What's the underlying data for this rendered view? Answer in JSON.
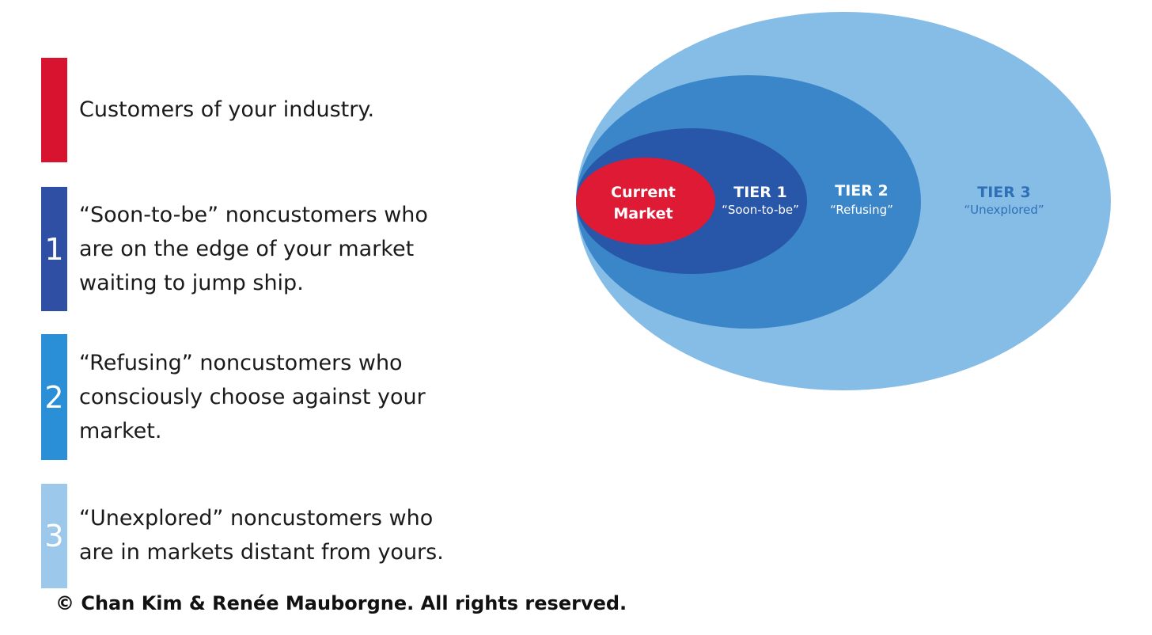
{
  "legend": {
    "items": [
      {
        "id": "current",
        "number": "",
        "text": "Customers of your industry.",
        "color": "#d7132f"
      },
      {
        "id": "tier1",
        "number": "1",
        "text": "“Soon-to-be” noncustomers who\nare on the edge of your market\nwaiting to jump ship.",
        "color": "#2e4fa3"
      },
      {
        "id": "tier2",
        "number": "2",
        "text": "“Refusing” noncustomers who\nconsciously choose against your\nmarket.",
        "color": "#2a8fd6"
      },
      {
        "id": "tier3",
        "number": "3",
        "text": "“Unexplored” noncustomers who\nare in markets distant from yours.",
        "color": "#9cc8ec"
      }
    ]
  },
  "diagram": {
    "current": {
      "line1": "Current",
      "line2": "Market",
      "color": "#de1a35"
    },
    "tier1": {
      "title": "TIER 1",
      "subtitle": "“Soon-to-be”",
      "color": "#2856a8"
    },
    "tier2": {
      "title": "TIER 2",
      "subtitle": "“Refusing”",
      "color": "#3b86c9"
    },
    "tier3": {
      "title": "TIER 3",
      "subtitle": "“Unexplored”",
      "color": "#86bde6",
      "text_color": "#2f6fb5"
    }
  },
  "copyright": "© Chan Kim & Renée Mauborgne. All rights reserved."
}
